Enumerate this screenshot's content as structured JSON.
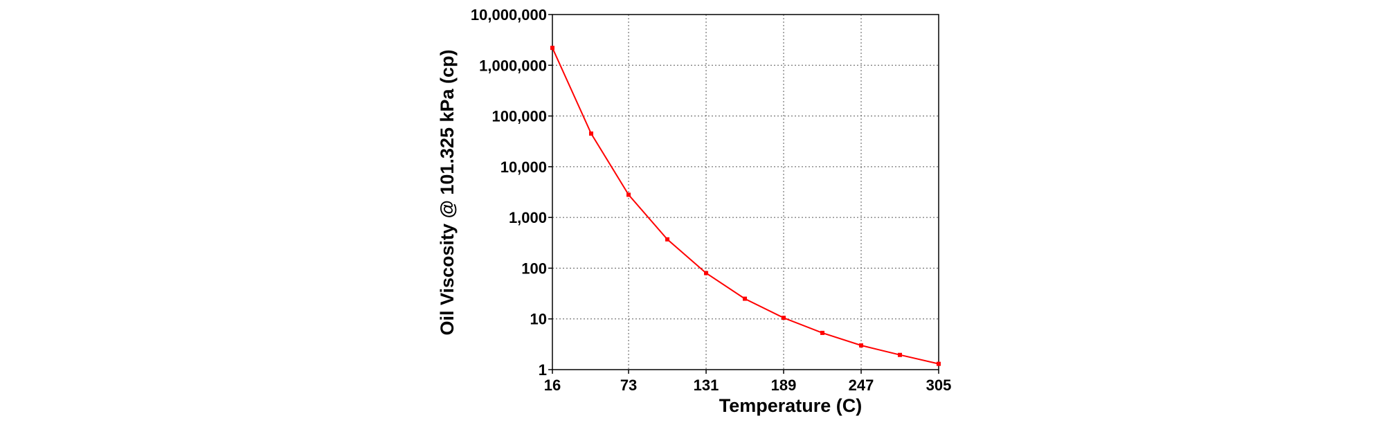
{
  "chart_data": {
    "type": "line",
    "title": "",
    "xlabel": "Temperature (C)",
    "ylabel": "Oil Viscosity @ 101.325 kPa (cp)",
    "x_scale": "linear",
    "y_scale": "log",
    "xlim": [
      16,
      305
    ],
    "ylim": [
      1,
      10000000
    ],
    "x_ticks": [
      16,
      73,
      131,
      189,
      247,
      305
    ],
    "x_tick_labels": [
      "16",
      "73",
      "131",
      "189",
      "247",
      "305"
    ],
    "y_ticks": [
      1,
      10,
      100,
      1000,
      10000,
      100000,
      1000000,
      10000000
    ],
    "y_tick_labels": [
      "1",
      "10",
      "100",
      "1,000",
      "10,000",
      "100,000",
      "1,000,000",
      "10,000,000"
    ],
    "grid": true,
    "series": [
      {
        "name": "Oil Viscosity",
        "color": "#ff0000",
        "x": [
          16,
          45,
          73,
          102,
          131,
          160,
          189,
          218,
          247,
          276,
          305
        ],
        "y": [
          2200000,
          45000,
          2800,
          370,
          80,
          25,
          10.5,
          5.3,
          3.0,
          1.95,
          1.3
        ]
      }
    ]
  }
}
